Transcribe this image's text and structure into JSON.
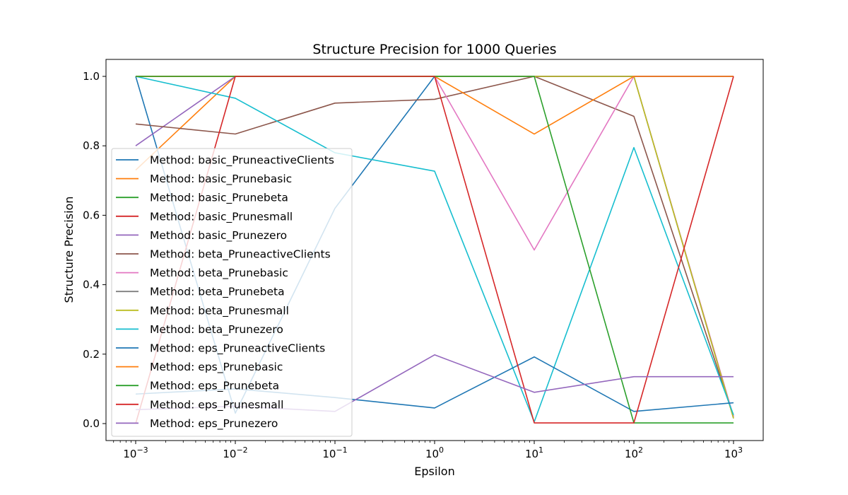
{
  "chart_data": {
    "type": "line",
    "title": "Structure Precision for 1000 Queries",
    "xlabel": "Epsilon",
    "ylabel": "Structure Precision",
    "xscale": "log",
    "x": [
      0.001,
      0.01,
      0.1,
      1,
      10,
      100,
      1000
    ],
    "x_tick_labels": [
      {
        "base": "10",
        "exp": "−3"
      },
      {
        "base": "10",
        "exp": "−2"
      },
      {
        "base": "10",
        "exp": "−1"
      },
      {
        "base": "10",
        "exp": "0"
      },
      {
        "base": "10",
        "exp": "1"
      },
      {
        "base": "10",
        "exp": "2"
      },
      {
        "base": "10",
        "exp": "3"
      }
    ],
    "y_ticks": [
      "0.0",
      "0.2",
      "0.4",
      "0.6",
      "0.8",
      "1.0"
    ],
    "ylim": [
      -0.05,
      1.05
    ],
    "grid": false,
    "legend_position": "lower-left",
    "series": [
      {
        "name": "Method: basic_PruneactiveClients",
        "color": "#1f77b4",
        "values": [
          1.0,
          0.03,
          0.62,
          1.0,
          1.0,
          1.0,
          1.0
        ]
      },
      {
        "name": "Method: basic_Prunebasic",
        "color": "#ff7f0e",
        "values": [
          0.73,
          1.0,
          1.0,
          1.0,
          1.0,
          1.0,
          1.0
        ]
      },
      {
        "name": "Method: basic_Prunebeta",
        "color": "#2ca02c",
        "values": [
          1.0,
          1.0,
          1.0,
          1.0,
          1.0,
          1.0,
          1.0
        ]
      },
      {
        "name": "Method: basic_Prunesmall",
        "color": "#d62728",
        "values": [
          1.0,
          1.0,
          1.0,
          1.0,
          1.0,
          1.0,
          1.0
        ]
      },
      {
        "name": "Method: basic_Prunezero",
        "color": "#9467bd",
        "values": [
          0.8,
          1.0,
          1.0,
          1.0,
          1.0,
          1.0,
          1.0
        ]
      },
      {
        "name": "Method: beta_PruneactiveClients",
        "color": "#8c564b",
        "values": [
          0.863,
          0.834,
          0.923,
          0.934,
          1.0,
          0.885,
          0.02
        ]
      },
      {
        "name": "Method: beta_Prunebasic",
        "color": "#e377c2",
        "values": [
          1.0,
          1.0,
          1.0,
          1.0,
          0.5,
          1.0,
          0.02
        ]
      },
      {
        "name": "Method: beta_Prunebeta",
        "color": "#7f7f7f",
        "values": [
          1.0,
          1.0,
          1.0,
          1.0,
          1.0,
          1.0,
          0.015
        ]
      },
      {
        "name": "Method: beta_Prunesmall",
        "color": "#bcbd22",
        "values": [
          1.0,
          1.0,
          1.0,
          1.0,
          1.0,
          1.0,
          0.015
        ]
      },
      {
        "name": "Method: beta_Prunezero",
        "color": "#17becf",
        "values": [
          1.0,
          0.937,
          0.78,
          0.727,
          0.005,
          0.795,
          0.025
        ]
      },
      {
        "name": "Method: eps_PruneactiveClients",
        "color": "#1f77b4",
        "values": [
          0.085,
          0.1,
          0.075,
          0.045,
          0.192,
          0.035,
          0.06
        ]
      },
      {
        "name": "Method: eps_Prunebasic",
        "color": "#ff7f0e",
        "values": [
          1.0,
          1.0,
          1.0,
          1.0,
          0.834,
          1.0,
          1.0
        ]
      },
      {
        "name": "Method: eps_Prunebeta",
        "color": "#2ca02c",
        "values": [
          1.0,
          1.0,
          1.0,
          1.0,
          1.0,
          0.002,
          0.002
        ]
      },
      {
        "name": "Method: eps_Prunesmall",
        "color": "#d62728",
        "values": [
          0.0,
          1.0,
          1.0,
          1.0,
          0.002,
          0.002,
          1.0
        ]
      },
      {
        "name": "Method: eps_Prunezero",
        "color": "#9467bd",
        "values": [
          0.04,
          0.05,
          0.035,
          0.198,
          0.09,
          0.135,
          0.135
        ]
      }
    ]
  }
}
